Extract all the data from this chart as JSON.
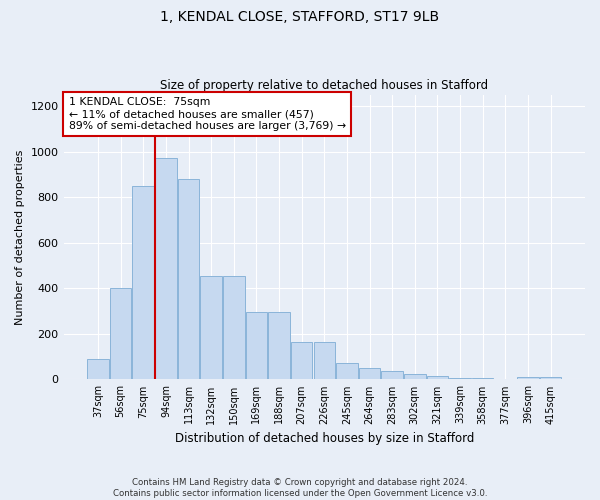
{
  "title_line1": "1, KENDAL CLOSE, STAFFORD, ST17 9LB",
  "title_line2": "Size of property relative to detached houses in Stafford",
  "xlabel": "Distribution of detached houses by size in Stafford",
  "ylabel": "Number of detached properties",
  "categories": [
    "37sqm",
    "56sqm",
    "75sqm",
    "94sqm",
    "113sqm",
    "132sqm",
    "150sqm",
    "169sqm",
    "188sqm",
    "207sqm",
    "226sqm",
    "245sqm",
    "264sqm",
    "283sqm",
    "302sqm",
    "321sqm",
    "339sqm",
    "358sqm",
    "377sqm",
    "396sqm",
    "415sqm"
  ],
  "values": [
    90,
    400,
    850,
    970,
    880,
    455,
    455,
    295,
    295,
    165,
    165,
    70,
    48,
    35,
    25,
    15,
    5,
    5,
    0,
    10,
    10
  ],
  "bar_color": "#c6d9f0",
  "bar_edge_color": "#8ab4d9",
  "vline_x_index": 2,
  "vline_color": "#cc0000",
  "annotation_text": "1 KENDAL CLOSE:  75sqm\n← 11% of detached houses are smaller (457)\n89% of semi-detached houses are larger (3,769) →",
  "annotation_box_color": "#ffffff",
  "annotation_box_edge_color": "#cc0000",
  "ylim": [
    0,
    1250
  ],
  "yticks": [
    0,
    200,
    400,
    600,
    800,
    1000,
    1200
  ],
  "footnote": "Contains HM Land Registry data © Crown copyright and database right 2024.\nContains public sector information licensed under the Open Government Licence v3.0.",
  "background_color": "#e8eef7",
  "plot_bg_color": "#e8eef7"
}
